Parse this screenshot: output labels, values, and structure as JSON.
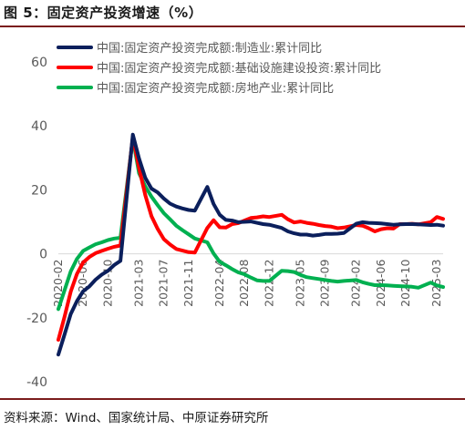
{
  "title": "图 5：固定资产投资增速（%）",
  "source": "资料来源：Wind、国家统计局、中原证券研究所",
  "chart_data": {
    "type": "line",
    "title": "",
    "xlabel": "",
    "ylabel": "",
    "ylim": [
      -40,
      60
    ],
    "yticks": [
      60,
      40,
      20,
      0,
      -20,
      -40
    ],
    "grid": false,
    "legend_position": "top",
    "x_tick_labels": [
      "2020-02",
      "2020-06",
      "2020-10",
      "2021-03",
      "2021-07",
      "2021-11",
      "2022-04",
      "2022-08",
      "2022-12",
      "2023-05",
      "2023-09",
      "2024-02",
      "2024-06",
      "2024-10",
      "2025-03"
    ],
    "series": [
      {
        "name": "中国:固定资产投资完成额:制造业:累计同比",
        "color": "#0b1f5c",
        "points": [
          [
            "2020-02",
            -31.5
          ],
          [
            "2020-03",
            -25.2
          ],
          [
            "2020-04",
            -18.8
          ],
          [
            "2020-05",
            -14.8
          ],
          [
            "2020-06",
            -11.7
          ],
          [
            "2020-07",
            -10.2
          ],
          [
            "2020-08",
            -8.1
          ],
          [
            "2020-09",
            -6.5
          ],
          [
            "2020-10",
            -5.3
          ],
          [
            "2020-11",
            -3.5
          ],
          [
            "2020-12",
            -2.2
          ],
          [
            "2021-02",
            37.3
          ],
          [
            "2021-03",
            29.8
          ],
          [
            "2021-04",
            23.8
          ],
          [
            "2021-05",
            20.4
          ],
          [
            "2021-06",
            19.2
          ],
          [
            "2021-07",
            17.3
          ],
          [
            "2021-08",
            15.7
          ],
          [
            "2021-09",
            14.8
          ],
          [
            "2021-10",
            14.2
          ],
          [
            "2021-11",
            13.7
          ],
          [
            "2021-12",
            13.5
          ],
          [
            "2022-02",
            20.9
          ],
          [
            "2022-03",
            15.6
          ],
          [
            "2022-04",
            12.2
          ],
          [
            "2022-05",
            10.6
          ],
          [
            "2022-06",
            10.4
          ],
          [
            "2022-07",
            9.9
          ],
          [
            "2022-08",
            10.0
          ],
          [
            "2022-09",
            10.1
          ],
          [
            "2022-10",
            9.7
          ],
          [
            "2022-11",
            9.3
          ],
          [
            "2022-12",
            9.1
          ],
          [
            "2023-02",
            8.1
          ],
          [
            "2023-03",
            7.0
          ],
          [
            "2023-04",
            6.4
          ],
          [
            "2023-05",
            6.0
          ],
          [
            "2023-06",
            6.0
          ],
          [
            "2023-07",
            5.7
          ],
          [
            "2023-08",
            5.9
          ],
          [
            "2023-09",
            6.2
          ],
          [
            "2023-10",
            6.2
          ],
          [
            "2023-11",
            6.3
          ],
          [
            "2023-12",
            6.5
          ],
          [
            "2024-02",
            9.4
          ],
          [
            "2024-03",
            9.9
          ],
          [
            "2024-04",
            9.7
          ],
          [
            "2024-05",
            9.6
          ],
          [
            "2024-06",
            9.5
          ],
          [
            "2024-07",
            9.3
          ],
          [
            "2024-08",
            9.1
          ],
          [
            "2024-09",
            9.2
          ],
          [
            "2024-10",
            9.3
          ],
          [
            "2024-11",
            9.3
          ],
          [
            "2024-12",
            9.2
          ],
          [
            "2025-02",
            9.0
          ],
          [
            "2025-03",
            9.1
          ],
          [
            "2025-04",
            8.8
          ]
        ]
      },
      {
        "name": "中国:固定资产投资完成额:基础设施建设投资:累计同比",
        "color": "#ff0000",
        "points": [
          [
            "2020-02",
            -26.9
          ],
          [
            "2020-03",
            -19.7
          ],
          [
            "2020-04",
            -11.8
          ],
          [
            "2020-05",
            -6.3
          ],
          [
            "2020-06",
            -2.7
          ],
          [
            "2020-07",
            -1.0
          ],
          [
            "2020-08",
            0.2
          ],
          [
            "2020-09",
            0.9
          ],
          [
            "2020-10",
            1.6
          ],
          [
            "2020-11",
            2.2
          ],
          [
            "2020-12",
            2.6
          ],
          [
            "2021-02",
            36.6
          ],
          [
            "2021-03",
            26.8
          ],
          [
            "2021-04",
            18.4
          ],
          [
            "2021-05",
            11.8
          ],
          [
            "2021-06",
            7.8
          ],
          [
            "2021-07",
            4.6
          ],
          [
            "2021-08",
            2.9
          ],
          [
            "2021-09",
            1.5
          ],
          [
            "2021-10",
            1.0
          ],
          [
            "2021-11",
            0.5
          ],
          [
            "2021-12",
            0.4
          ],
          [
            "2022-02",
            8.1
          ],
          [
            "2022-03",
            10.5
          ],
          [
            "2022-04",
            8.3
          ],
          [
            "2022-05",
            8.2
          ],
          [
            "2022-06",
            9.3
          ],
          [
            "2022-07",
            9.6
          ],
          [
            "2022-08",
            10.4
          ],
          [
            "2022-09",
            11.2
          ],
          [
            "2022-10",
            11.4
          ],
          [
            "2022-11",
            11.7
          ],
          [
            "2022-12",
            11.5
          ],
          [
            "2023-02",
            12.2
          ],
          [
            "2023-03",
            10.8
          ],
          [
            "2023-04",
            9.8
          ],
          [
            "2023-05",
            10.1
          ],
          [
            "2023-06",
            9.7
          ],
          [
            "2023-07",
            9.4
          ],
          [
            "2023-08",
            9.0
          ],
          [
            "2023-09",
            8.7
          ],
          [
            "2023-10",
            8.5
          ],
          [
            "2023-11",
            8.0
          ],
          [
            "2023-12",
            8.2
          ],
          [
            "2024-02",
            9.0
          ],
          [
            "2024-03",
            8.8
          ],
          [
            "2024-04",
            8.0
          ],
          [
            "2024-05",
            7.0
          ],
          [
            "2024-06",
            7.7
          ],
          [
            "2024-07",
            8.0
          ],
          [
            "2024-08",
            7.9
          ],
          [
            "2024-09",
            9.3
          ],
          [
            "2024-10",
            9.3
          ],
          [
            "2024-11",
            9.4
          ],
          [
            "2024-12",
            9.2
          ],
          [
            "2025-02",
            9.9
          ],
          [
            "2025-03",
            11.5
          ],
          [
            "2025-04",
            10.9
          ]
        ]
      },
      {
        "name": "中国:固定资产投资完成额:房地产业:累计同比",
        "color": "#00b050",
        "points": [
          [
            "2020-02",
            -17.3
          ],
          [
            "2020-03",
            -11.4
          ],
          [
            "2020-04",
            -5.5
          ],
          [
            "2020-05",
            -1.6
          ],
          [
            "2020-06",
            0.9
          ],
          [
            "2020-07",
            2.0
          ],
          [
            "2020-08",
            3.0
          ],
          [
            "2020-09",
            3.6
          ],
          [
            "2020-10",
            4.3
          ],
          [
            "2020-11",
            4.8
          ],
          [
            "2020-12",
            5.0
          ],
          [
            "2021-02",
            36.1
          ],
          [
            "2021-03",
            25.2
          ],
          [
            "2021-04",
            21.1
          ],
          [
            "2021-05",
            17.9
          ],
          [
            "2021-06",
            15.2
          ],
          [
            "2021-07",
            12.7
          ],
          [
            "2021-08",
            10.8
          ],
          [
            "2021-09",
            8.8
          ],
          [
            "2021-10",
            7.4
          ],
          [
            "2021-11",
            6.1
          ],
          [
            "2021-12",
            4.8
          ],
          [
            "2022-02",
            3.6
          ],
          [
            "2022-03",
            0.1
          ],
          [
            "2022-04",
            -2.5
          ],
          [
            "2022-05",
            -3.6
          ],
          [
            "2022-06",
            -4.8
          ],
          [
            "2022-07",
            -5.8
          ],
          [
            "2022-08",
            -6.4
          ],
          [
            "2022-09",
            -7.4
          ],
          [
            "2022-10",
            -8.3
          ],
          [
            "2022-11",
            -8.5
          ],
          [
            "2022-12",
            -8.5
          ],
          [
            "2023-02",
            -5.3
          ],
          [
            "2023-03",
            -5.4
          ],
          [
            "2023-04",
            -5.7
          ],
          [
            "2023-05",
            -6.6
          ],
          [
            "2023-06",
            -7.3
          ],
          [
            "2023-07",
            -7.6
          ],
          [
            "2023-08",
            -7.9
          ],
          [
            "2023-09",
            -8.2
          ],
          [
            "2023-10",
            -8.5
          ],
          [
            "2023-11",
            -8.7
          ],
          [
            "2023-12",
            -8.5
          ],
          [
            "2024-02",
            -8.2
          ],
          [
            "2024-03",
            -8.9
          ],
          [
            "2024-04",
            -9.4
          ],
          [
            "2024-05",
            -9.8
          ],
          [
            "2024-06",
            -9.8
          ],
          [
            "2024-07",
            -9.9
          ],
          [
            "2024-08",
            -10.0
          ],
          [
            "2024-09",
            -10.1
          ],
          [
            "2024-10",
            -10.2
          ],
          [
            "2024-11",
            -10.3
          ],
          [
            "2024-12",
            -10.6
          ],
          [
            "2025-02",
            -9.0
          ],
          [
            "2025-03",
            -9.9
          ],
          [
            "2025-04",
            -10.4
          ]
        ]
      }
    ]
  }
}
